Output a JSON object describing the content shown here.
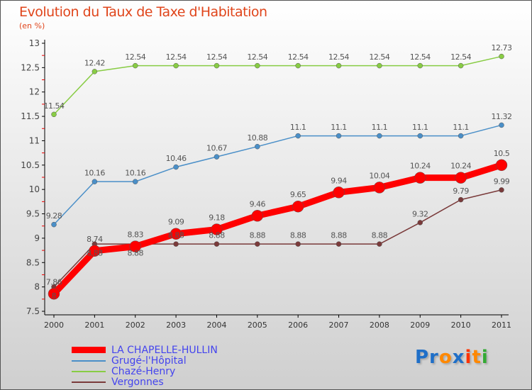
{
  "chart_data": {
    "type": "line",
    "title": "Evolution du Taux de Taxe d'Habitation",
    "subtitle": "(en %)",
    "x": [
      "2000",
      "2001",
      "2002",
      "2003",
      "2004",
      "2005",
      "2006",
      "2007",
      "2008",
      "2009",
      "2010",
      "2011"
    ],
    "ylim": [
      7.5,
      13
    ],
    "yticks": [
      "7.5",
      "8",
      "8.5",
      "9",
      "9.5",
      "10",
      "10.5",
      "11",
      "11.5",
      "12",
      "12.5",
      "13"
    ],
    "series": [
      {
        "name": "Chazé-Henry",
        "color": "#88cc44",
        "width": 1.5,
        "r": 3.5,
        "values": [
          11.54,
          12.42,
          12.54,
          12.54,
          12.54,
          12.54,
          12.54,
          12.54,
          12.54,
          12.54,
          12.54,
          12.73
        ]
      },
      {
        "name": "Grugé-l'Hôpital",
        "color": "#4a8fc8",
        "width": 1.5,
        "r": 3.5,
        "values": [
          9.28,
          10.16,
          10.16,
          10.46,
          10.67,
          10.88,
          11.1,
          11.1,
          11.1,
          11.1,
          11.1,
          11.32
        ]
      },
      {
        "name": "Vergonnes",
        "color": "#7a3a3a",
        "width": 1.5,
        "r": 3.5,
        "values": [
          8,
          8.88,
          8.88,
          8.88,
          8.88,
          8.88,
          8.88,
          8.88,
          8.88,
          9.32,
          9.79,
          9.99
        ]
      },
      {
        "name": "LA CHAPELLE-HULLIN",
        "color": "#ff0000",
        "width": 9,
        "r": 8,
        "values": [
          7.86,
          8.74,
          8.83,
          9.09,
          9.18,
          9.46,
          9.65,
          9.94,
          10.04,
          10.24,
          10.24,
          10.5
        ]
      }
    ],
    "legend_order": [
      "LA CHAPELLE-HULLIN",
      "Grugé-l'Hôpital",
      "Chazé-Henry",
      "Vergonnes"
    ],
    "legend_position": "bottom-left"
  },
  "logo": "Proxiti"
}
